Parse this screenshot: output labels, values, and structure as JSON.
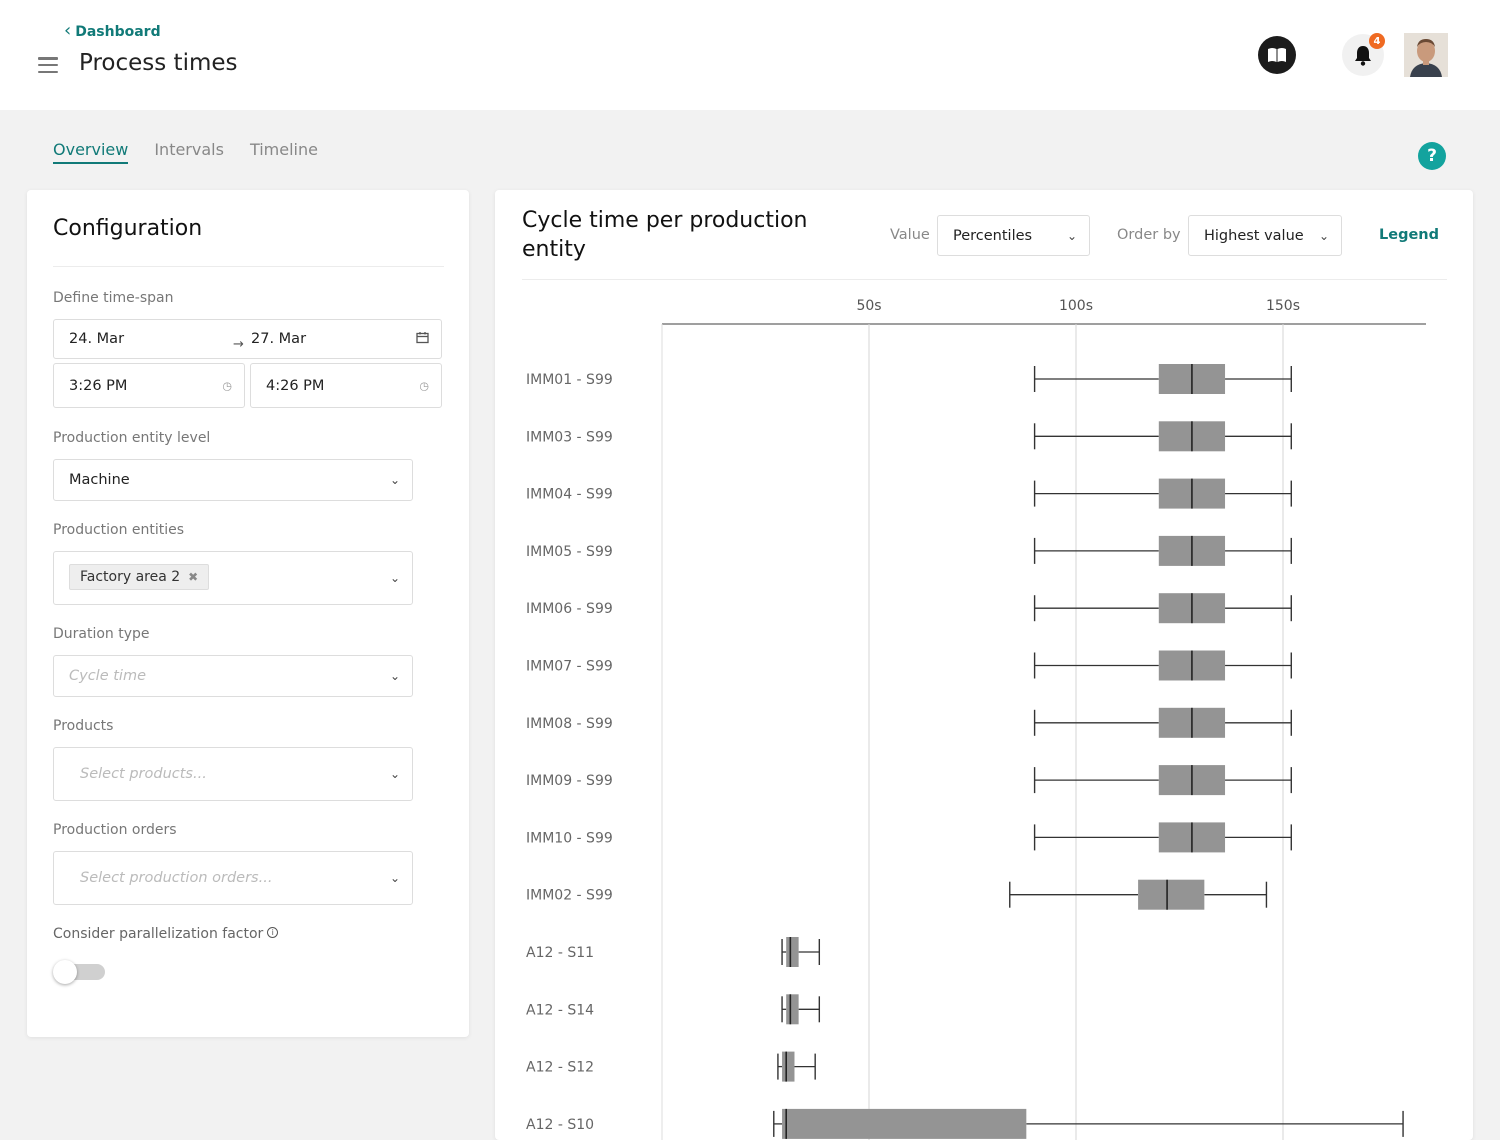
{
  "header": {
    "back_label": "Dashboard",
    "title": "Process times",
    "notification_count": "4"
  },
  "tabs": [
    {
      "label": "Overview",
      "active": true
    },
    {
      "label": "Intervals",
      "active": false
    },
    {
      "label": "Timeline",
      "active": false
    }
  ],
  "help_label": "?",
  "config": {
    "title": "Configuration",
    "time_span_label": "Define time-span",
    "date_from": "24. Mar",
    "date_to": "27. Mar",
    "time_from": "3:26 PM",
    "time_to": "4:26 PM",
    "entity_level_label": "Production entity level",
    "entity_level_value": "Machine",
    "entities_label": "Production entities",
    "entities_tag": "Factory area 2",
    "duration_type_label": "Duration type",
    "duration_type_placeholder": "Cycle time",
    "products_label": "Products",
    "products_placeholder": "Select products...",
    "orders_label": "Production orders",
    "orders_placeholder": "Select production orders...",
    "parallelization_label": "Consider parallelization factor",
    "parallelization_enabled": false
  },
  "chart_panel": {
    "title": "Cycle time per production entity",
    "value_label": "Value",
    "value_selected": "Percentiles",
    "order_label": "Order by",
    "order_selected": "Highest value",
    "legend_label": "Legend"
  },
  "chart_data": {
    "type": "box",
    "x_unit": "s",
    "xlim": [
      0,
      185
    ],
    "x_ticks": [
      50,
      100,
      150
    ],
    "x_tick_labels": [
      "50s",
      "100s",
      "150s"
    ],
    "grid": true,
    "series": [
      {
        "label": "IMM01 - S99",
        "min": 90,
        "q1": 120,
        "median": 128,
        "q3": 136,
        "max": 152
      },
      {
        "label": "IMM03 - S99",
        "min": 90,
        "q1": 120,
        "median": 128,
        "q3": 136,
        "max": 152
      },
      {
        "label": "IMM04 - S99",
        "min": 90,
        "q1": 120,
        "median": 128,
        "q3": 136,
        "max": 152
      },
      {
        "label": "IMM05 - S99",
        "min": 90,
        "q1": 120,
        "median": 128,
        "q3": 136,
        "max": 152
      },
      {
        "label": "IMM06 - S99",
        "min": 90,
        "q1": 120,
        "median": 128,
        "q3": 136,
        "max": 152
      },
      {
        "label": "IMM07 - S99",
        "min": 90,
        "q1": 120,
        "median": 128,
        "q3": 136,
        "max": 152
      },
      {
        "label": "IMM08 - S99",
        "min": 90,
        "q1": 120,
        "median": 128,
        "q3": 136,
        "max": 152
      },
      {
        "label": "IMM09 - S99",
        "min": 90,
        "q1": 120,
        "median": 128,
        "q3": 136,
        "max": 152
      },
      {
        "label": "IMM10 - S99",
        "min": 90,
        "q1": 120,
        "median": 128,
        "q3": 136,
        "max": 152
      },
      {
        "label": "IMM02 - S99",
        "min": 84,
        "q1": 115,
        "median": 122,
        "q3": 131,
        "max": 146
      },
      {
        "label": "A12 - S11",
        "min": 29,
        "q1": 30,
        "median": 31,
        "q3": 33,
        "max": 38
      },
      {
        "label": "A12 - S14",
        "min": 29,
        "q1": 30,
        "median": 31,
        "q3": 33,
        "max": 38
      },
      {
        "label": "A12 - S12",
        "min": 28,
        "q1": 29,
        "median": 30,
        "q3": 32,
        "max": 37
      },
      {
        "label": "A12 - S10",
        "min": 27,
        "q1": 29,
        "median": 30,
        "q3": 88,
        "max": 179
      }
    ]
  },
  "colors": {
    "accent": "#117a78",
    "help": "#13a39e",
    "badge": "#ef6a22",
    "box_fill": "#949494",
    "line": "#333333"
  },
  "icons": {
    "back": "chevron-left-icon",
    "menu": "hamburger-icon",
    "book": "book-icon",
    "bell": "bell-icon",
    "calendar": "calendar-icon",
    "clock": "clock-icon",
    "caret": "chevron-down-icon"
  }
}
